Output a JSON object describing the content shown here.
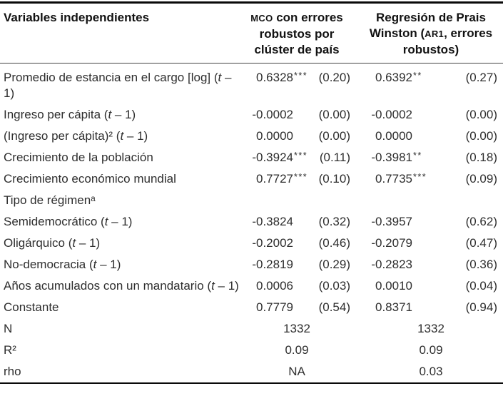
{
  "table": {
    "smallcaps_tokens": [
      "MCO",
      "AR1"
    ],
    "columns": [
      "Variables independientes",
      "MCO con errores robustos por clúster de país",
      "Regresión de Prais Winston (AR1, errores robustos)"
    ],
    "rows": [
      {
        "type": "coef",
        "label": "Promedio de estancia en el cargo [log] (t – 1)",
        "m1": "0.6328",
        "m1_stars": "***",
        "m1_se": "(0.20)",
        "m2": "0.6392",
        "m2_stars": "**",
        "m2_se": "(0.27)"
      },
      {
        "type": "coef",
        "label": "Ingreso per cápita (t – 1)",
        "m1": "-0.0002",
        "m1_stars": "",
        "m1_se": "(0.00)",
        "m2": "-0.0002",
        "m2_stars": "",
        "m2_se": "(0.00)"
      },
      {
        "type": "coef",
        "label": "(Ingreso per cápita)² (t – 1)",
        "m1": "0.0000",
        "m1_stars": "",
        "m1_se": "(0.00)",
        "m2": "0.0000",
        "m2_stars": "",
        "m2_se": "(0.00)"
      },
      {
        "type": "coef",
        "label": "Crecimiento de la población",
        "m1": "-0.3924",
        "m1_stars": "***",
        "m1_se": "(0.11)",
        "m2": "-0.3981",
        "m2_stars": "**",
        "m2_se": "(0.18)"
      },
      {
        "type": "coef",
        "label": "Crecimiento económico mundial",
        "m1": "0.7727",
        "m1_stars": "***",
        "m1_se": "(0.10)",
        "m2": "0.7735",
        "m2_stars": "***",
        "m2_se": "(0.09)"
      },
      {
        "type": "section",
        "label": "Tipo de régimenᵃ"
      },
      {
        "type": "coef",
        "label": "Semidemocrático (t – 1)",
        "m1": "-0.3824",
        "m1_stars": "",
        "m1_se": "(0.32)",
        "m2": "-0.3957",
        "m2_stars": "",
        "m2_se": "(0.62)"
      },
      {
        "type": "coef",
        "label": "Oligárquico (t – 1)",
        "m1": "-0.2002",
        "m1_stars": "",
        "m1_se": "(0.46)",
        "m2": "-0.2079",
        "m2_stars": "",
        "m2_se": "(0.47)"
      },
      {
        "type": "coef",
        "label": "No-democracia (t – 1)",
        "m1": "-0.2819",
        "m1_stars": "",
        "m1_se": "(0.29)",
        "m2": "-0.2823",
        "m2_stars": "",
        "m2_se": "(0.36)"
      },
      {
        "type": "coef",
        "label": "Años acumulados con un mandatario (t – 1)",
        "m1": "0.0006",
        "m1_stars": "",
        "m1_se": "(0.03)",
        "m2": "0.0010",
        "m2_stars": "",
        "m2_se": "(0.04)"
      },
      {
        "type": "coef",
        "label": "Constante",
        "m1": "0.7779",
        "m1_stars": "",
        "m1_se": "(0.54)",
        "m2": "0.8371",
        "m2_stars": "",
        "m2_se": "(0.94)"
      },
      {
        "type": "stat",
        "label": "N",
        "m1": "1332",
        "m2": "1332"
      },
      {
        "type": "stat",
        "label": "R²",
        "m1": "0.09",
        "m2": "0.09"
      },
      {
        "type": "stat",
        "label": "rho",
        "m1": "NA",
        "m2": "0.03"
      }
    ]
  }
}
